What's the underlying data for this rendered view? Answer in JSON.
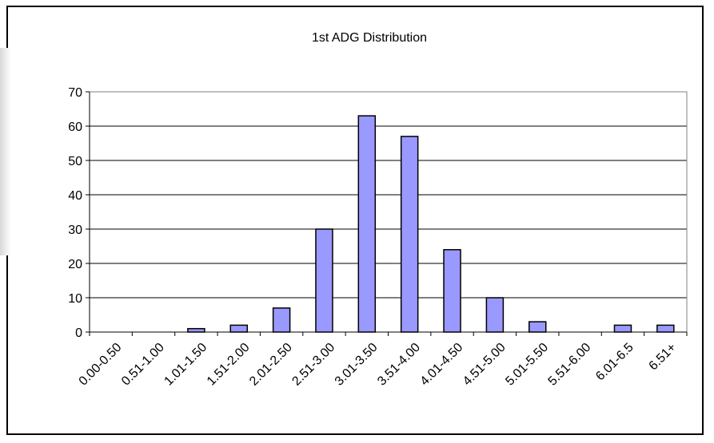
{
  "chart_data": {
    "type": "bar",
    "title": "1st ADG Distribution",
    "xlabel": "",
    "ylabel": "",
    "categories": [
      "0.00-0.50",
      "0.51-1.00",
      "1.01-1.50",
      "1.51-2.00",
      "2.01-2.50",
      "2.51-3.00",
      "3.01-3.50",
      "3.51-4.00",
      "4.01-4.50",
      "4.51-5.00",
      "5.01-5.50",
      "5.51-6.00",
      "6.01-6.5",
      "6.51+"
    ],
    "values": [
      0,
      0,
      1,
      2,
      7,
      30,
      63,
      57,
      24,
      10,
      3,
      0,
      2,
      2
    ],
    "ylim": [
      0,
      70
    ],
    "yticks": [
      0,
      10,
      20,
      30,
      40,
      50,
      60,
      70
    ],
    "grid": true,
    "legend": "none",
    "colors": {
      "bar_fill": "#9999ff",
      "bar_stroke": "#000000",
      "grid": "#000000",
      "plot_border": "#808080"
    }
  }
}
